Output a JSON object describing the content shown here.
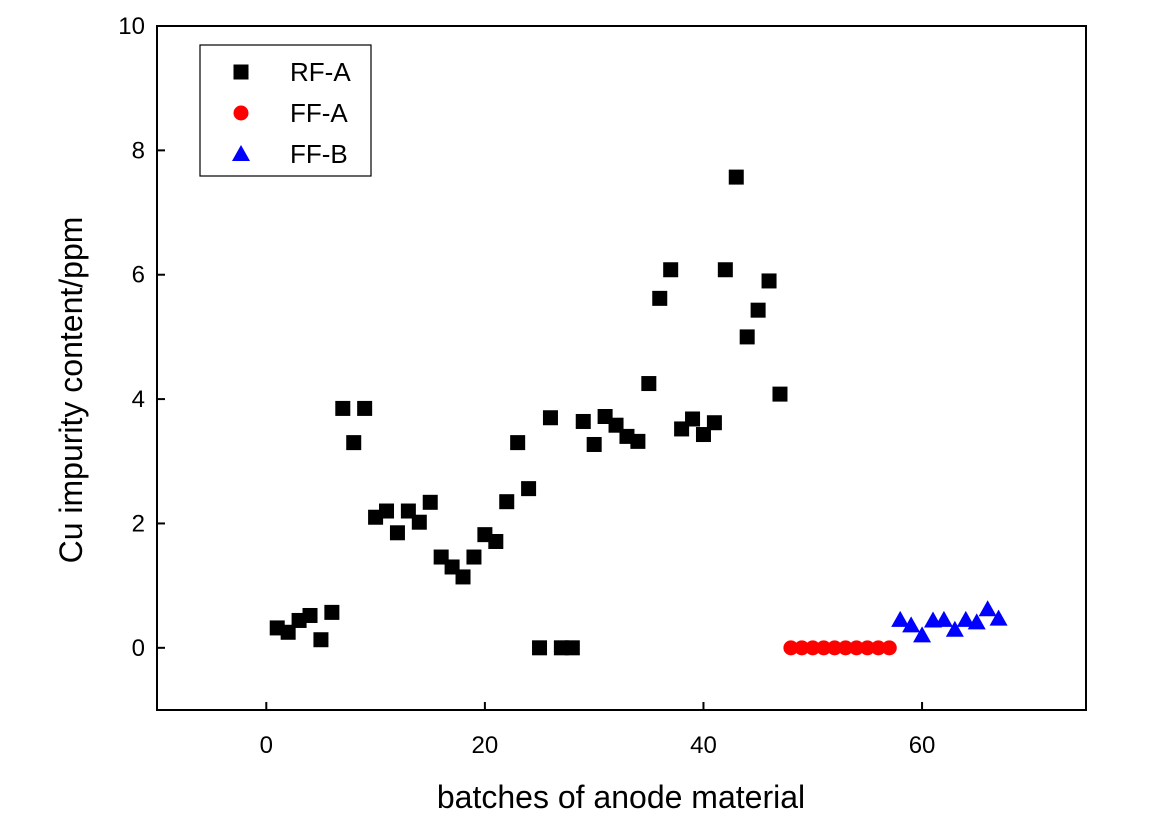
{
  "chart_data": {
    "type": "scatter",
    "title": "",
    "xlabel": "batches of anode material",
    "ylabel": "Cu impurity content/ppm",
    "xlim": [
      -10,
      75
    ],
    "ylim": [
      -1,
      10
    ],
    "x_ticks": [
      0,
      20,
      40,
      60
    ],
    "x_tick_labels": [
      "0",
      "20",
      "40",
      "60"
    ],
    "y_ticks": [
      0,
      2,
      4,
      6,
      8,
      10
    ],
    "y_tick_labels": [
      "0",
      "2",
      "4",
      "6",
      "8",
      "10"
    ],
    "grid": false,
    "legend_position": "top-left",
    "series": [
      {
        "name": "RF-A",
        "marker": "square",
        "color": "#000000",
        "points": [
          [
            1,
            0.32
          ],
          [
            2,
            0.25
          ],
          [
            3,
            0.44
          ],
          [
            4,
            0.52
          ],
          [
            5,
            0.13
          ],
          [
            6,
            0.57
          ],
          [
            7,
            3.85
          ],
          [
            8,
            3.3
          ],
          [
            9,
            3.85
          ],
          [
            10,
            2.1
          ],
          [
            11,
            2.2
          ],
          [
            12,
            1.85
          ],
          [
            13,
            2.2
          ],
          [
            14,
            2.02
          ],
          [
            15,
            2.34
          ],
          [
            16,
            1.46
          ],
          [
            17,
            1.3
          ],
          [
            18,
            1.14
          ],
          [
            19,
            1.46
          ],
          [
            20,
            1.82
          ],
          [
            21,
            1.71
          ],
          [
            22,
            2.35
          ],
          [
            23,
            3.3
          ],
          [
            24,
            2.56
          ],
          [
            25,
            0.0
          ],
          [
            26,
            3.7
          ],
          [
            27,
            0.0
          ],
          [
            28,
            0.0
          ],
          [
            29,
            3.64
          ],
          [
            30,
            3.27
          ],
          [
            31,
            3.72
          ],
          [
            32,
            3.58
          ],
          [
            33,
            3.4
          ],
          [
            34,
            3.32
          ],
          [
            35,
            4.25
          ],
          [
            36,
            5.62
          ],
          [
            37,
            6.08
          ],
          [
            38,
            3.52
          ],
          [
            39,
            3.68
          ],
          [
            40,
            3.43
          ],
          [
            41,
            3.62
          ],
          [
            42,
            6.08
          ],
          [
            43,
            7.57
          ],
          [
            44,
            5.0
          ],
          [
            45,
            5.43
          ],
          [
            46,
            5.9
          ],
          [
            47,
            4.08
          ]
        ]
      },
      {
        "name": "FF-A",
        "marker": "circle",
        "color": "#ff0000",
        "points": [
          [
            48,
            0.0
          ],
          [
            49,
            0.0
          ],
          [
            50,
            0.0
          ],
          [
            51,
            0.0
          ],
          [
            52,
            0.0
          ],
          [
            53,
            0.0
          ],
          [
            54,
            0.0
          ],
          [
            55,
            0.0
          ],
          [
            56,
            0.0
          ],
          [
            57,
            0.0
          ]
        ]
      },
      {
        "name": "FF-B",
        "marker": "triangle",
        "color": "#0000ff",
        "points": [
          [
            58,
            0.45
          ],
          [
            59,
            0.36
          ],
          [
            60,
            0.2
          ],
          [
            61,
            0.44
          ],
          [
            62,
            0.45
          ],
          [
            63,
            0.29
          ],
          [
            64,
            0.45
          ],
          [
            65,
            0.41
          ],
          [
            66,
            0.62
          ],
          [
            67,
            0.47
          ]
        ]
      }
    ]
  }
}
